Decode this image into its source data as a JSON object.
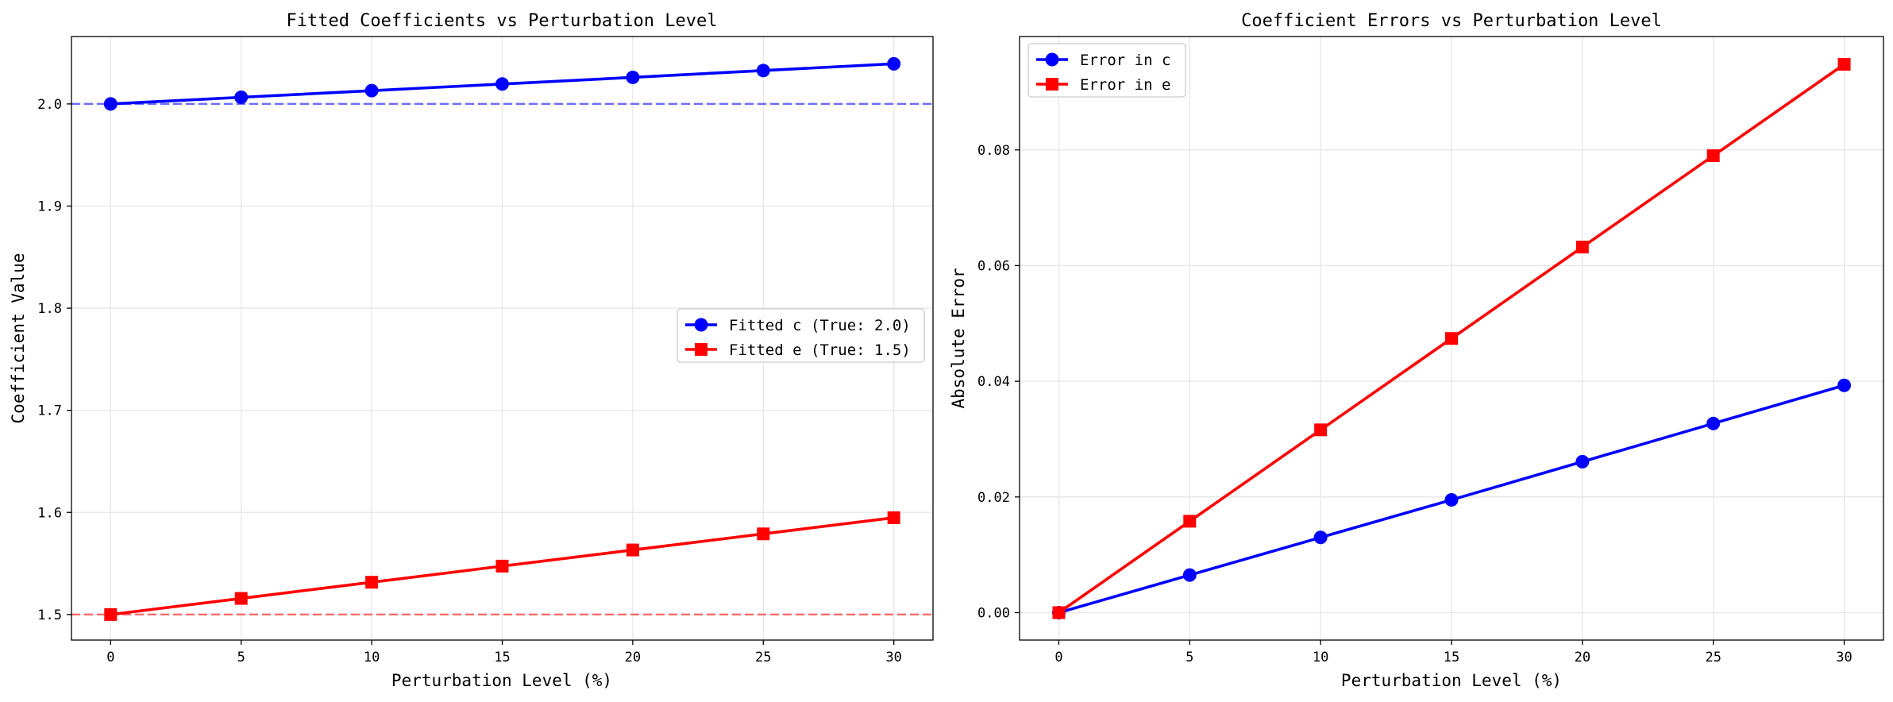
{
  "chart_data": [
    {
      "type": "line",
      "title": "Fitted Coefficients vs Perturbation Level",
      "xlabel": "Perturbation Level (%)",
      "ylabel": "Coefficient Value",
      "x": [
        0,
        5,
        10,
        15,
        20,
        25,
        30
      ],
      "xlim": [
        -1.5,
        31.5
      ],
      "ylim": [
        1.475,
        2.066
      ],
      "xticks": [
        0,
        5,
        10,
        15,
        20,
        25,
        30
      ],
      "yticks": [
        1.5,
        1.6,
        1.7,
        1.8,
        1.9,
        2.0
      ],
      "ytick_labels": [
        "1.5",
        "1.6",
        "1.7",
        "1.8",
        "1.9",
        "2.0"
      ],
      "grid": true,
      "legend_position": "center-right",
      "series": [
        {
          "name": "Fitted c (True: 2.0)",
          "color": "#0000ff",
          "marker": "circle",
          "values": [
            2.0,
            2.0065,
            2.013,
            2.0195,
            2.026,
            2.0327,
            2.0393
          ]
        },
        {
          "name": "Fitted e (True: 1.5)",
          "color": "#ff0000",
          "marker": "square",
          "values": [
            1.5,
            1.5158,
            1.5316,
            1.5474,
            1.5632,
            1.579,
            1.5948
          ]
        }
      ],
      "reference_lines": [
        {
          "y": 2.0,
          "color": "#0000ff",
          "style": "dashed"
        },
        {
          "y": 1.5,
          "color": "#ff0000",
          "style": "dashed"
        }
      ]
    },
    {
      "type": "line",
      "title": "Coefficient Errors vs Perturbation Level",
      "xlabel": "Perturbation Level (%)",
      "ylabel": "Absolute Error",
      "x": [
        0,
        5,
        10,
        15,
        20,
        25,
        30
      ],
      "xlim": [
        -1.5,
        31.5
      ],
      "ylim": [
        -0.00474,
        0.0996
      ],
      "xticks": [
        0,
        5,
        10,
        15,
        20,
        25,
        30
      ],
      "yticks": [
        0.0,
        0.02,
        0.04,
        0.06,
        0.08
      ],
      "ytick_labels": [
        "0.00",
        "0.02",
        "0.04",
        "0.06",
        "0.08"
      ],
      "grid": true,
      "legend_position": "top-left",
      "series": [
        {
          "name": "Error in c",
          "color": "#0000ff",
          "marker": "circle",
          "values": [
            0.0,
            0.0065,
            0.013,
            0.0195,
            0.0261,
            0.0327,
            0.0393
          ]
        },
        {
          "name": "Error in e",
          "color": "#ff0000",
          "marker": "square",
          "values": [
            0.0,
            0.0158,
            0.0316,
            0.0474,
            0.0632,
            0.079,
            0.0948
          ]
        }
      ]
    }
  ]
}
